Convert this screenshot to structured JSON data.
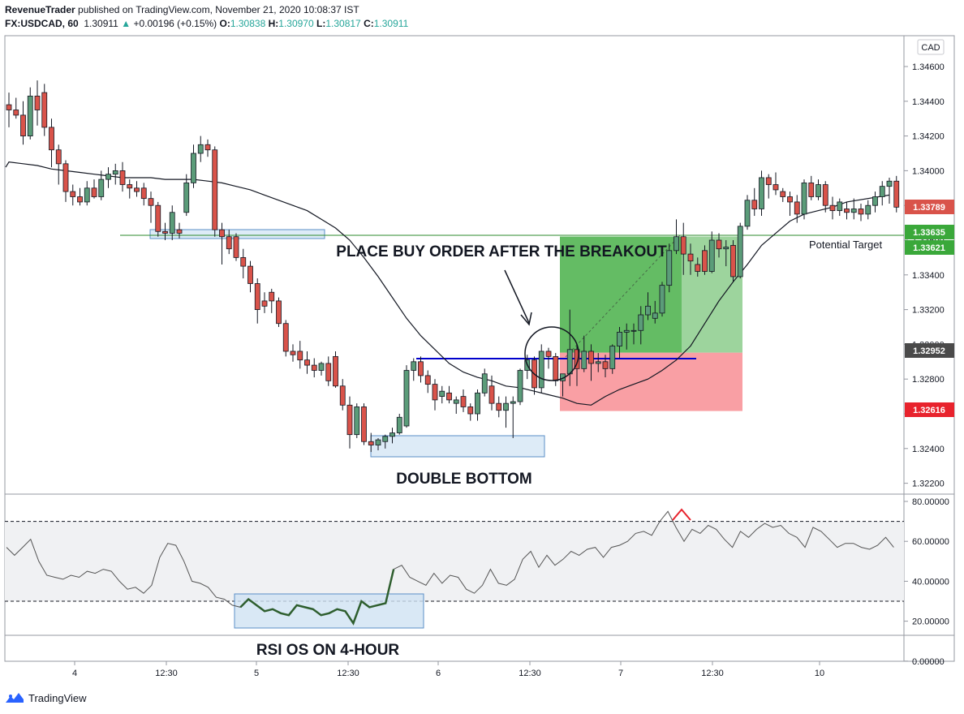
{
  "header": {
    "line1": "RevenueTrader published on TradingView.com, November 21, 2020 10:08:37 IST",
    "publisher": "RevenueTrader",
    "symbol_interval": "FX:USDCAD, 60",
    "last": "1.30911",
    "change": "+0.00196 (+0.15%)",
    "o_label": "O:",
    "o": "1.30838",
    "h_label": "H:",
    "h": "1.30970",
    "l_label": "L:",
    "l": "1.30817",
    "c_label": "C:",
    "c": "1.30911"
  },
  "currency_badge": "CAD",
  "footer": {
    "brand": "TradingView"
  },
  "annotations": {
    "breakout": "PLACE BUY ORDER AFTER THE BREAKOUT",
    "double_bottom": "DOUBLE BOTTOM",
    "rsi_os": "RSI OS ON 4-HOUR",
    "potential_target": "Potential Target"
  },
  "colors": {
    "up": "#5b9c79",
    "down": "#d9534a",
    "ma": "#131722",
    "profit_zone": "#5cb85c",
    "loss_zone": "#f77f85",
    "resistance": "#0000cc",
    "target_line": "#2e8b2e",
    "price_badge_current": "#d9534a",
    "price_badge_target": "#3aa83a",
    "price_badge_entry": "#4a4a4a",
    "price_badge_stop": "#e8232d"
  },
  "chart_data": {
    "type": "candlestick",
    "symbol": "FX:USDCAD",
    "interval": "60",
    "x_tick_labels": [
      "4",
      "12:30",
      "5",
      "12:30",
      "6",
      "12:30",
      "7",
      "12:30",
      "10"
    ],
    "price_axis": {
      "ylim": [
        1.321,
        1.3475
      ],
      "tick_labels": [
        "1.34600",
        "1.34400",
        "1.34200",
        "1.34000",
        "1.33800",
        "1.33600",
        "1.33400",
        "1.33200",
        "1.33000",
        "1.32800",
        "1.32600",
        "1.32400",
        "1.32200"
      ],
      "tick_values": [
        1.346,
        1.344,
        1.342,
        1.34,
        1.338,
        1.336,
        1.334,
        1.332,
        1.33,
        1.328,
        1.326,
        1.324,
        1.322
      ]
    },
    "price_labels": [
      {
        "text": "1.33789",
        "value": 1.33789,
        "role": "current"
      },
      {
        "text": "1.33635",
        "value": 1.33635,
        "role": "target"
      },
      {
        "text": "1.33621",
        "value": 1.33621,
        "role": "target"
      },
      {
        "text": "1.32952",
        "value": 1.32952,
        "role": "entry"
      },
      {
        "text": "1.32616",
        "value": 1.32616,
        "role": "stop"
      }
    ],
    "candles": [
      [
        1.3438,
        1.3445,
        1.3425,
        1.3435
      ],
      [
        1.3435,
        1.3442,
        1.343,
        1.3432
      ],
      [
        1.3432,
        1.344,
        1.3415,
        1.342
      ],
      [
        1.342,
        1.3448,
        1.3418,
        1.3443
      ],
      [
        1.3443,
        1.3452,
        1.3426,
        1.3435
      ],
      [
        1.3445,
        1.345,
        1.342,
        1.3425
      ],
      [
        1.3425,
        1.343,
        1.3402,
        1.3412
      ],
      [
        1.3412,
        1.3415,
        1.3392,
        1.3404
      ],
      [
        1.3404,
        1.3406,
        1.3382,
        1.3388
      ],
      [
        1.3388,
        1.3392,
        1.338,
        1.3385
      ],
      [
        1.3385,
        1.339,
        1.338,
        1.3382
      ],
      [
        1.3382,
        1.3394,
        1.338,
        1.339
      ],
      [
        1.339,
        1.3395,
        1.3384,
        1.3385
      ],
      [
        1.3385,
        1.34,
        1.3383,
        1.3395
      ],
      [
        1.3395,
        1.3402,
        1.339,
        1.3398
      ],
      [
        1.3398,
        1.3404,
        1.3392,
        1.34
      ],
      [
        1.34,
        1.3405,
        1.3388,
        1.3392
      ],
      [
        1.3392,
        1.3395,
        1.3384,
        1.339
      ],
      [
        1.339,
        1.3394,
        1.3385,
        1.3388
      ],
      [
        1.339,
        1.3393,
        1.338,
        1.3384
      ],
      [
        1.3384,
        1.3388,
        1.337,
        1.338
      ],
      [
        1.338,
        1.3382,
        1.3362,
        1.3365
      ],
      [
        1.3365,
        1.337,
        1.336,
        1.3364
      ],
      [
        1.3364,
        1.338,
        1.336,
        1.3376
      ],
      [
        1.3366,
        1.337,
        1.3361,
        1.3364
      ],
      [
        1.3376,
        1.3398,
        1.3374,
        1.3393
      ],
      [
        1.3393,
        1.3415,
        1.339,
        1.341
      ],
      [
        1.341,
        1.342,
        1.3405,
        1.3415
      ],
      [
        1.3415,
        1.3418,
        1.3408,
        1.3412
      ],
      [
        1.3412,
        1.3414,
        1.3362,
        1.3366
      ],
      [
        1.3366,
        1.337,
        1.3346,
        1.3362
      ],
      [
        1.3362,
        1.3366,
        1.3352,
        1.3355
      ],
      [
        1.3362,
        1.3364,
        1.3348,
        1.335
      ],
      [
        1.335,
        1.3355,
        1.3338,
        1.3345
      ],
      [
        1.3345,
        1.3348,
        1.333,
        1.3335
      ],
      [
        1.3335,
        1.3338,
        1.3312,
        1.332
      ],
      [
        1.3325,
        1.333,
        1.3318,
        1.3322
      ],
      [
        1.333,
        1.3332,
        1.3318,
        1.3325
      ],
      [
        1.3325,
        1.3327,
        1.331,
        1.3312
      ],
      [
        1.3312,
        1.3314,
        1.3293,
        1.3296
      ],
      [
        1.3296,
        1.33,
        1.329,
        1.3294
      ],
      [
        1.3296,
        1.3302,
        1.3286,
        1.3291
      ],
      [
        1.3291,
        1.3296,
        1.3283,
        1.3288
      ],
      [
        1.3288,
        1.3292,
        1.3281,
        1.3285
      ],
      [
        1.3285,
        1.329,
        1.3282,
        1.3289
      ],
      [
        1.3289,
        1.3293,
        1.3276,
        1.3279
      ],
      [
        1.3293,
        1.3296,
        1.3275,
        1.3276
      ],
      [
        1.3276,
        1.328,
        1.3262,
        1.3265
      ],
      [
        1.3265,
        1.327,
        1.324,
        1.3248
      ],
      [
        1.3248,
        1.3266,
        1.3246,
        1.3264
      ],
      [
        1.3264,
        1.3266,
        1.3242,
        1.3244
      ],
      [
        1.3244,
        1.3249,
        1.3238,
        1.3242
      ],
      [
        1.3242,
        1.3246,
        1.3239,
        1.3245
      ],
      [
        1.3244,
        1.3248,
        1.324,
        1.3247
      ],
      [
        1.3247,
        1.3252,
        1.3243,
        1.3249
      ],
      [
        1.3249,
        1.326,
        1.3248,
        1.3258
      ],
      [
        1.3253,
        1.3288,
        1.3252,
        1.3285
      ],
      [
        1.3285,
        1.3292,
        1.3279,
        1.329
      ],
      [
        1.329,
        1.3293,
        1.3278,
        1.3282
      ],
      [
        1.3282,
        1.3285,
        1.3272,
        1.3277
      ],
      [
        1.3277,
        1.328,
        1.3262,
        1.3268
      ],
      [
        1.327,
        1.3276,
        1.3266,
        1.3273
      ],
      [
        1.3272,
        1.3276,
        1.3266,
        1.3268
      ],
      [
        1.3266,
        1.327,
        1.326,
        1.3268
      ],
      [
        1.327,
        1.3274,
        1.3261,
        1.3264
      ],
      [
        1.3264,
        1.3266,
        1.3256,
        1.326
      ],
      [
        1.326,
        1.3274,
        1.3256,
        1.3272
      ],
      [
        1.3272,
        1.3286,
        1.327,
        1.3283
      ],
      [
        1.3276,
        1.3282,
        1.3262,
        1.3266
      ],
      [
        1.3266,
        1.327,
        1.3258,
        1.3262
      ],
      [
        1.3262,
        1.327,
        1.3252,
        1.3266
      ],
      [
        1.3266,
        1.327,
        1.3246,
        1.3267
      ],
      [
        1.3267,
        1.3286,
        1.3265,
        1.3285
      ],
      [
        1.3285,
        1.3294,
        1.328,
        1.3291
      ],
      [
        1.3291,
        1.3293,
        1.3271,
        1.3275
      ],
      [
        1.3275,
        1.33,
        1.3272,
        1.3296
      ],
      [
        1.3296,
        1.3298,
        1.3286,
        1.3293
      ],
      [
        1.3293,
        1.3295,
        1.3276,
        1.3279
      ],
      [
        1.3279,
        1.3282,
        1.327,
        1.3283
      ],
      [
        1.3283,
        1.332,
        1.3276,
        1.3297
      ],
      [
        1.3297,
        1.33,
        1.3276,
        1.3286
      ],
      [
        1.3286,
        1.3305,
        1.3284,
        1.3296
      ],
      [
        1.3296,
        1.33,
        1.3279,
        1.3289
      ],
      [
        1.3289,
        1.3295,
        1.3284,
        1.329
      ],
      [
        1.329,
        1.3294,
        1.3281,
        1.3286
      ],
      [
        1.3286,
        1.33,
        1.3283,
        1.3299
      ],
      [
        1.3299,
        1.331,
        1.3292,
        1.3307
      ],
      [
        1.3307,
        1.3312,
        1.3297,
        1.3308
      ],
      [
        1.3308,
        1.3312,
        1.33,
        1.3308
      ],
      [
        1.3308,
        1.3322,
        1.33,
        1.3317
      ],
      [
        1.3317,
        1.333,
        1.3314,
        1.3322
      ],
      [
        1.3315,
        1.3325,
        1.3312,
        1.3318
      ],
      [
        1.3318,
        1.3336,
        1.3316,
        1.3334
      ],
      [
        1.3334,
        1.3358,
        1.333,
        1.3354
      ],
      [
        1.3354,
        1.3372,
        1.3352,
        1.3362
      ],
      [
        1.3362,
        1.337,
        1.334,
        1.3352
      ],
      [
        1.3352,
        1.3358,
        1.334,
        1.3348
      ],
      [
        1.3346,
        1.335,
        1.3339,
        1.3342
      ],
      [
        1.3354,
        1.3357,
        1.334,
        1.3342
      ],
      [
        1.3342,
        1.3365,
        1.3341,
        1.336
      ],
      [
        1.336,
        1.3364,
        1.335,
        1.3355
      ],
      [
        1.3355,
        1.336,
        1.3345,
        1.3356
      ],
      [
        1.3357,
        1.336,
        1.3336,
        1.3339
      ],
      [
        1.3339,
        1.337,
        1.3338,
        1.3368
      ],
      [
        1.3368,
        1.3386,
        1.3366,
        1.3383
      ],
      [
        1.3383,
        1.339,
        1.3374,
        1.3378
      ],
      [
        1.3378,
        1.34,
        1.3374,
        1.3396
      ],
      [
        1.3396,
        1.3398,
        1.3384,
        1.3392
      ],
      [
        1.3392,
        1.3399,
        1.3386,
        1.3389
      ],
      [
        1.3388,
        1.339,
        1.3382,
        1.3385
      ],
      [
        1.3385,
        1.3388,
        1.3374,
        1.3382
      ],
      [
        1.3382,
        1.3386,
        1.337,
        1.3375
      ],
      [
        1.3375,
        1.3395,
        1.3372,
        1.3393
      ],
      [
        1.3393,
        1.3397,
        1.3383,
        1.3385
      ],
      [
        1.3385,
        1.3395,
        1.3383,
        1.3392
      ],
      [
        1.3392,
        1.3394,
        1.3376,
        1.338
      ],
      [
        1.338,
        1.3385,
        1.3372,
        1.3377
      ],
      [
        1.3377,
        1.3384,
        1.3374,
        1.3382
      ],
      [
        1.3378,
        1.3382,
        1.3372,
        1.3376
      ],
      [
        1.3376,
        1.3384,
        1.3372,
        1.3378
      ],
      [
        1.3378,
        1.3381,
        1.3371,
        1.3375
      ],
      [
        1.3375,
        1.3383,
        1.3372,
        1.338
      ],
      [
        1.338,
        1.3388,
        1.3376,
        1.3385
      ],
      [
        1.3385,
        1.3394,
        1.338,
        1.3391
      ],
      [
        1.3391,
        1.3396,
        1.3381,
        1.3394
      ],
      [
        1.3394,
        1.3397,
        1.3376,
        1.3379
      ]
    ],
    "moving_average": [
      1.3405,
      1.3404,
      1.3403,
      1.3401,
      1.34,
      1.3399,
      1.3398,
      1.3397,
      1.3396,
      1.3396,
      1.3396,
      1.3395,
      1.3395,
      1.3395,
      1.3394,
      1.3393,
      1.3391,
      1.3389,
      1.3386,
      1.3383,
      1.338,
      1.3377,
      1.3372,
      1.3367,
      1.336,
      1.335,
      1.3339,
      1.3327,
      1.3315,
      1.3305,
      1.3297,
      1.3289,
      1.3284,
      1.3281,
      1.3279,
      1.3276,
      1.3275,
      1.3273,
      1.3271,
      1.3269,
      1.3266,
      1.3265,
      1.327,
      1.3274,
      1.3277,
      1.328,
      1.3285,
      1.3291,
      1.3299,
      1.3312,
      1.3325,
      1.3336,
      1.3346,
      1.3357,
      1.3364,
      1.3371,
      1.3375,
      1.3377,
      1.3379,
      1.3382,
      1.3386
    ],
    "moving_average_x_candle_index": [
      0,
      2,
      4,
      6,
      8,
      10,
      12,
      14,
      16,
      18,
      20,
      22,
      24,
      26,
      28,
      30,
      32,
      34,
      36,
      38,
      40,
      42,
      44,
      46,
      48,
      50,
      52,
      54,
      56,
      58,
      60,
      62,
      64,
      66,
      68,
      70,
      72,
      74,
      76,
      78,
      80,
      82,
      84,
      86,
      88,
      90,
      92,
      94,
      96,
      98,
      100,
      102,
      104,
      106,
      108,
      110,
      112,
      114,
      116,
      118,
      124
    ],
    "rsi": {
      "yaxis_tick_labels": [
        "80.00000",
        "60.00000",
        "40.00000",
        "20.00000",
        "0.00000"
      ],
      "yaxis_tick_values": [
        80,
        60,
        40,
        20,
        0
      ],
      "overbought": 70,
      "oversold": 30,
      "values": [
        57,
        53,
        57,
        61,
        50,
        43,
        42,
        41,
        43,
        42,
        45,
        44,
        46,
        45,
        40,
        36,
        37,
        34,
        38,
        52,
        59,
        58,
        50,
        40,
        39,
        37,
        32,
        31,
        28,
        27,
        31,
        28,
        25,
        26,
        24,
        23,
        28,
        27,
        26,
        23,
        24,
        26,
        25,
        19,
        30,
        27,
        28,
        29,
        46,
        48,
        42,
        40,
        38,
        44,
        39,
        43,
        42,
        36,
        34,
        38,
        46,
        39,
        38,
        41,
        51,
        55,
        47,
        53,
        48,
        51,
        55,
        53,
        56,
        57,
        52,
        57,
        58,
        60,
        64,
        65,
        63,
        70,
        75,
        67,
        60,
        66,
        64,
        68,
        66,
        61,
        57,
        65,
        62,
        66,
        69,
        67,
        68,
        64,
        62,
        57,
        67,
        65,
        61,
        57,
        59,
        59,
        57,
        56,
        58,
        62,
        57
      ]
    }
  }
}
